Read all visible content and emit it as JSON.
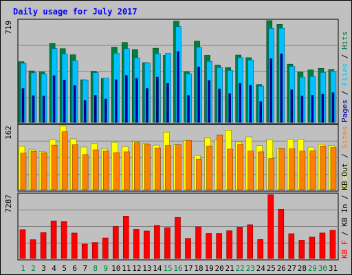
{
  "chart_data": {
    "type": "bar",
    "title": "Daily usage for July 2017",
    "categories": [
      "1",
      "2",
      "3",
      "4",
      "5",
      "6",
      "7",
      "8",
      "9",
      "10",
      "11",
      "12",
      "13",
      "14",
      "15",
      "16",
      "17",
      "18",
      "19",
      "20",
      "21",
      "22",
      "23",
      "24",
      "25",
      "26",
      "27",
      "28",
      "29",
      "30",
      "31"
    ],
    "weekend_days": [
      "1",
      "2",
      "8",
      "9",
      "15",
      "16",
      "22",
      "23",
      "29",
      "30"
    ],
    "panels": [
      {
        "id": "top",
        "ymax_label": "719",
        "ymax": 719,
        "legend": [
          "Pages",
          "Files",
          "Hits"
        ],
        "series": [
          {
            "name": "Hits",
            "color": "#008040",
            "values": [
              429,
              364,
              357,
              558,
              521,
              478,
              301,
              362,
              311,
              532,
              565,
              515,
              422,
              524,
              474,
              715,
              359,
              574,
              474,
              404,
              387,
              476,
              457,
              268,
              719,
              693,
              412,
              355,
              371,
              382,
              374
            ]
          },
          {
            "name": "Files",
            "color": "#00c0ff",
            "values": [
              418,
              351,
              341,
              522,
              483,
              436,
              300,
              352,
              313,
              489,
              521,
              456,
              420,
              485,
              488,
              677,
              343,
              531,
              431,
              388,
              367,
              457,
              441,
              257,
              664,
              665,
              396,
              320,
              325,
              353,
              362
            ]
          },
          {
            "name": "Pages",
            "color": "#0000a0",
            "values": [
              240,
              189,
              186,
              330,
              299,
              260,
              155,
              191,
              165,
              301,
              331,
              310,
              240,
              320,
              276,
              500,
              191,
              392,
              296,
              236,
              203,
              276,
              261,
              147,
              450,
              484,
              230,
              186,
              192,
              199,
              210
            ]
          }
        ]
      },
      {
        "id": "middle",
        "ymax_label": "162",
        "ymax": 162,
        "legend": [
          "Visits",
          "Sites"
        ],
        "series": [
          {
            "name": "Visits",
            "color": "#ffff00",
            "values": [
              110,
              101,
              97,
              127,
              162,
              129,
              108,
              117,
              104,
              120,
              109,
              122,
              117,
              113,
              146,
              114,
              125,
              87,
              131,
              126,
              151,
              121,
              134,
              112,
              127,
              105,
              128,
              128,
              108,
              115,
              112
            ]
          },
          {
            "name": "Sites",
            "color": "#ff8000",
            "values": [
              93,
              97,
              94,
              113,
              147,
              114,
              89,
              101,
              98,
              94,
              96,
              119,
              115,
              106,
              112,
              114,
              125,
              78,
              111,
              139,
              103,
              115,
              98,
              96,
              79,
              105,
              104,
              98,
              99,
              111,
              107
            ]
          }
        ]
      },
      {
        "id": "bottom",
        "ymax_label": "7287",
        "ymax": 7287,
        "legend": [
          "KB F",
          "KB In",
          "KB Out"
        ],
        "series": [
          {
            "name": "KB F",
            "color": "#ff0000",
            "values": [
              3296,
              2147,
              2952,
              4286,
              4207,
              2905,
              1645,
              1826,
              2347,
              3650,
              4829,
              3336,
              3138,
              3780,
              3522,
              4685,
              2293,
              3605,
              2860,
              2854,
              3164,
              3569,
              3850,
              2169,
              7287,
              5620,
              2826,
              2080,
              2437,
              2910,
              3215
            ]
          }
        ]
      }
    ]
  }
}
